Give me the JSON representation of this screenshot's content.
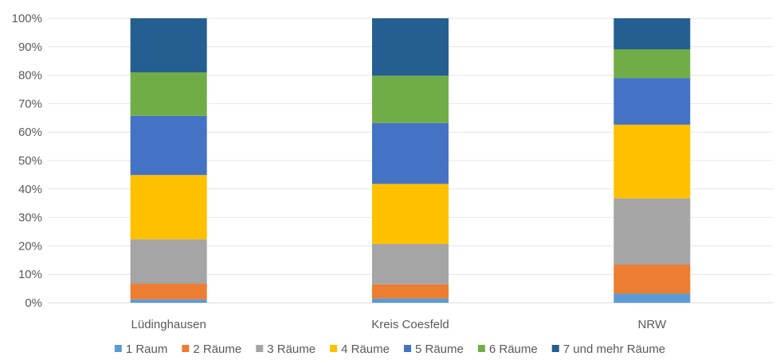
{
  "chart_data": {
    "type": "bar",
    "stacked": true,
    "percent_stacked": true,
    "categories": [
      "Lüdinghausen",
      "Kreis Coesfeld",
      "NRW"
    ],
    "series": [
      {
        "name": "1 Raum",
        "color": "#5B9BD5",
        "values": [
          1.2,
          1.5,
          3.2
        ]
      },
      {
        "name": "2 Räume",
        "color": "#ED7D31",
        "values": [
          5.5,
          5.0,
          10.2
        ]
      },
      {
        "name": "3 Räume",
        "color": "#A5A5A5",
        "values": [
          15.6,
          14.2,
          23.3
        ]
      },
      {
        "name": "4 Räume",
        "color": "#FFC000",
        "values": [
          22.6,
          21.1,
          25.9
        ]
      },
      {
        "name": "5 Räume",
        "color": "#4472C4",
        "values": [
          20.8,
          21.4,
          16.4
        ]
      },
      {
        "name": "6 Räume",
        "color": "#70AD47",
        "values": [
          15.3,
          16.6,
          10.1
        ]
      },
      {
        "name": "7 und mehr Räume",
        "color": "#255E91",
        "values": [
          19.0,
          20.2,
          10.9
        ]
      }
    ],
    "y_ticks": [
      "0%",
      "10%",
      "20%",
      "30%",
      "40%",
      "50%",
      "60%",
      "70%",
      "80%",
      "90%",
      "100%"
    ],
    "ylim": [
      0,
      100
    ],
    "grid": true,
    "legend_position": "bottom",
    "title": "",
    "xlabel": "",
    "ylabel": ""
  }
}
